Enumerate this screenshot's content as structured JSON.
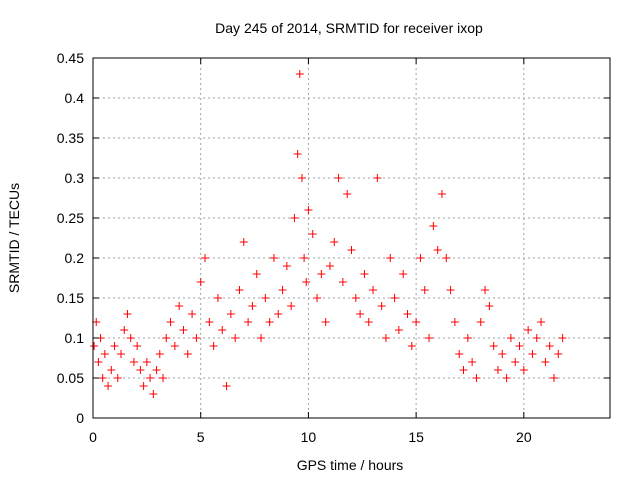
{
  "chart_data": {
    "type": "scatter",
    "title": "Day 245 of 2014, SRMTID for receiver ixop",
    "xlabel": "GPS time / hours",
    "ylabel": "SRMTID / TECUs",
    "xlim": [
      0,
      24
    ],
    "ylim": [
      0,
      0.45
    ],
    "x_ticks": [
      0,
      5,
      10,
      15,
      20
    ],
    "x_tick_labels": [
      "0",
      "5",
      "10",
      "15",
      "20"
    ],
    "y_ticks": [
      0,
      0.05,
      0.1,
      0.15,
      0.2,
      0.25,
      0.3,
      0.35,
      0.4,
      0.45
    ],
    "y_tick_labels": [
      "0",
      "0.05",
      "0.1",
      "0.15",
      "0.2",
      "0.25",
      "0.3",
      "0.35",
      "0.4",
      "0.45"
    ],
    "grid": true,
    "marker": "plus",
    "color": "#ff0000",
    "series": [
      {
        "name": "SRMTID",
        "x": [
          0.05,
          0.15,
          0.25,
          0.35,
          0.45,
          0.55,
          0.7,
          0.85,
          1.0,
          1.15,
          1.3,
          1.45,
          1.6,
          1.75,
          1.9,
          2.05,
          2.2,
          2.35,
          2.5,
          2.65,
          2.8,
          2.95,
          3.1,
          3.25,
          3.4,
          3.6,
          3.8,
          4.0,
          4.2,
          4.4,
          4.6,
          4.8,
          5.0,
          5.2,
          5.4,
          5.6,
          5.8,
          6.0,
          6.2,
          6.4,
          6.6,
          6.8,
          7.0,
          7.2,
          7.4,
          7.6,
          7.8,
          8.0,
          8.2,
          8.4,
          8.6,
          8.8,
          9.0,
          9.2,
          9.35,
          9.5,
          9.6,
          9.7,
          9.8,
          9.9,
          10.0,
          10.2,
          10.4,
          10.6,
          10.8,
          11.0,
          11.2,
          11.4,
          11.6,
          11.8,
          12.0,
          12.2,
          12.4,
          12.6,
          12.8,
          13.0,
          13.2,
          13.4,
          13.6,
          13.8,
          14.0,
          14.2,
          14.4,
          14.6,
          14.8,
          15.0,
          15.2,
          15.4,
          15.6,
          15.8,
          16.0,
          16.2,
          16.4,
          16.6,
          16.8,
          17.0,
          17.2,
          17.4,
          17.6,
          17.8,
          18.0,
          18.2,
          18.4,
          18.6,
          18.8,
          19.0,
          19.2,
          19.4,
          19.6,
          19.8,
          20.0,
          20.2,
          20.4,
          20.6,
          20.8,
          21.0,
          21.2,
          21.4,
          21.6,
          21.8
        ],
        "y": [
          0.09,
          0.12,
          0.07,
          0.1,
          0.05,
          0.08,
          0.04,
          0.06,
          0.09,
          0.05,
          0.08,
          0.11,
          0.13,
          0.1,
          0.07,
          0.09,
          0.06,
          0.04,
          0.07,
          0.05,
          0.03,
          0.06,
          0.08,
          0.05,
          0.1,
          0.12,
          0.09,
          0.14,
          0.11,
          0.08,
          0.13,
          0.1,
          0.17,
          0.2,
          0.12,
          0.09,
          0.15,
          0.11,
          0.04,
          0.13,
          0.1,
          0.16,
          0.22,
          0.12,
          0.14,
          0.18,
          0.1,
          0.15,
          0.12,
          0.2,
          0.13,
          0.16,
          0.19,
          0.14,
          0.25,
          0.33,
          0.43,
          0.3,
          0.2,
          0.17,
          0.26,
          0.23,
          0.15,
          0.18,
          0.12,
          0.19,
          0.22,
          0.3,
          0.17,
          0.28,
          0.21,
          0.15,
          0.13,
          0.18,
          0.12,
          0.16,
          0.3,
          0.14,
          0.1,
          0.2,
          0.15,
          0.11,
          0.18,
          0.13,
          0.09,
          0.12,
          0.2,
          0.16,
          0.1,
          0.24,
          0.21,
          0.28,
          0.2,
          0.16,
          0.12,
          0.08,
          0.06,
          0.1,
          0.07,
          0.05,
          0.12,
          0.16,
          0.14,
          0.09,
          0.06,
          0.08,
          0.05,
          0.1,
          0.07,
          0.09,
          0.06,
          0.11,
          0.08,
          0.1,
          0.12,
          0.07,
          0.09,
          0.05,
          0.08,
          0.1
        ]
      }
    ]
  }
}
